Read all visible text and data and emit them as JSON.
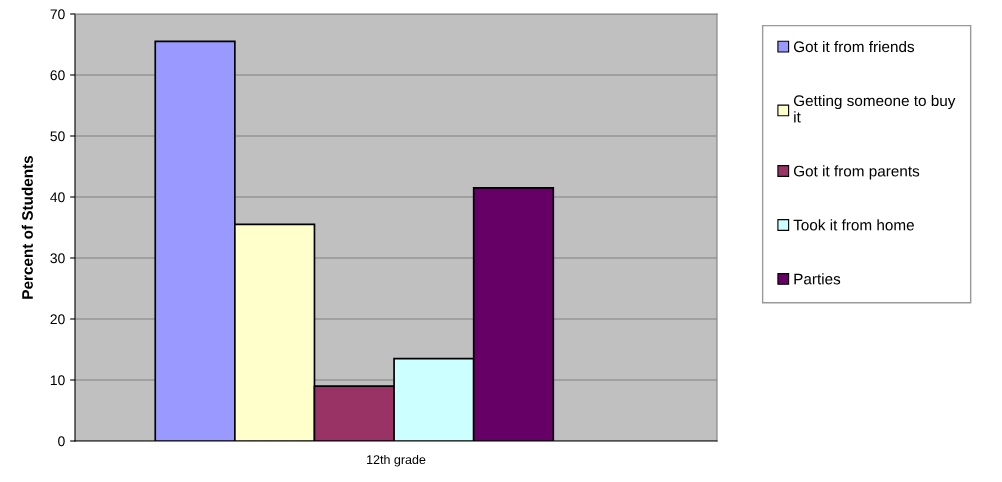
{
  "chart_data": {
    "type": "bar",
    "ylabel": "Percent of Students",
    "categories": [
      "12th grade"
    ],
    "series": [
      {
        "name": "Got it from friends",
        "color": "#9999ff",
        "values": [
          65.5
        ]
      },
      {
        "name": "Getting someone to buy it",
        "color": "#ffffcc",
        "values": [
          35.5
        ]
      },
      {
        "name": "Got it from parents",
        "color": "#993366",
        "values": [
          9
        ]
      },
      {
        "name": "Took it from home",
        "color": "#ccffff",
        "values": [
          13.5
        ]
      },
      {
        "name": "Parties",
        "color": "#660066",
        "values": [
          41.5
        ]
      }
    ],
    "ylim": [
      0,
      70
    ],
    "yticks": [
      0,
      10,
      20,
      30,
      40,
      50,
      60,
      70
    ],
    "grid": "y",
    "legend": "right"
  }
}
